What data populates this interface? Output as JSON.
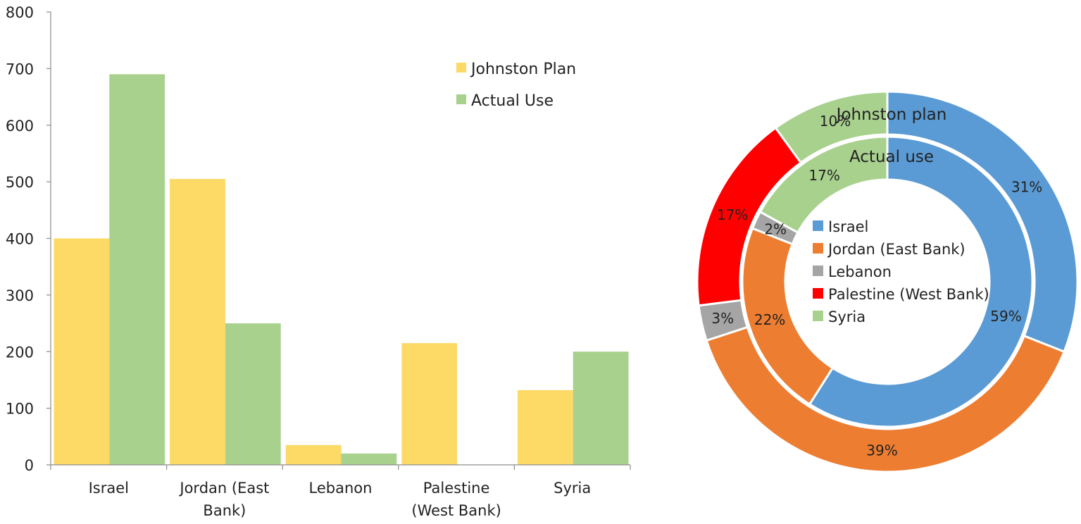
{
  "chart_data": [
    {
      "type": "bar",
      "categories": [
        "Israel",
        "Jordan (East Bank)",
        "Lebanon",
        "Palestine (West Bank)",
        "Syria"
      ],
      "category_lines": [
        [
          "Israel"
        ],
        [
          "Jordan (East",
          "Bank)"
        ],
        [
          "Lebanon"
        ],
        [
          "Palestine",
          "(West Bank)"
        ],
        [
          "Syria"
        ]
      ],
      "series": [
        {
          "name": "Johnston Plan",
          "values": [
            400,
            505,
            35,
            215,
            132
          ],
          "color": "#FDD966"
        },
        {
          "name": "Actual Use",
          "values": [
            690,
            250,
            20,
            0,
            200
          ],
          "color": "#A9D18E"
        }
      ],
      "ylim": [
        0,
        800
      ],
      "yticks": [
        "0",
        "100",
        "200",
        "300",
        "400",
        "500",
        "600",
        "700",
        "800"
      ],
      "grid": false,
      "legend": "top-right"
    },
    {
      "type": "pie",
      "variant": "doughnut",
      "categories": [
        "Israel",
        "Jordan (East Bank)",
        "Lebanon",
        "Palestine (West Bank)",
        "Syria"
      ],
      "colors": [
        "#5B9BD5",
        "#ED7D31",
        "#A5A5A5",
        "#FF0000",
        "#A9D18E"
      ],
      "rings": [
        {
          "name": "Johnston plan",
          "position": "outer",
          "values": [
            31,
            39,
            3,
            17,
            10
          ],
          "labels": [
            "31%",
            "39%",
            "3%",
            "17%",
            "10%"
          ]
        },
        {
          "name": "Actual use",
          "position": "inner",
          "values": [
            59,
            22,
            2,
            0,
            17
          ],
          "labels": [
            "59%",
            "22%",
            "2%",
            "",
            "17%"
          ]
        }
      ],
      "legend": "center"
    }
  ]
}
